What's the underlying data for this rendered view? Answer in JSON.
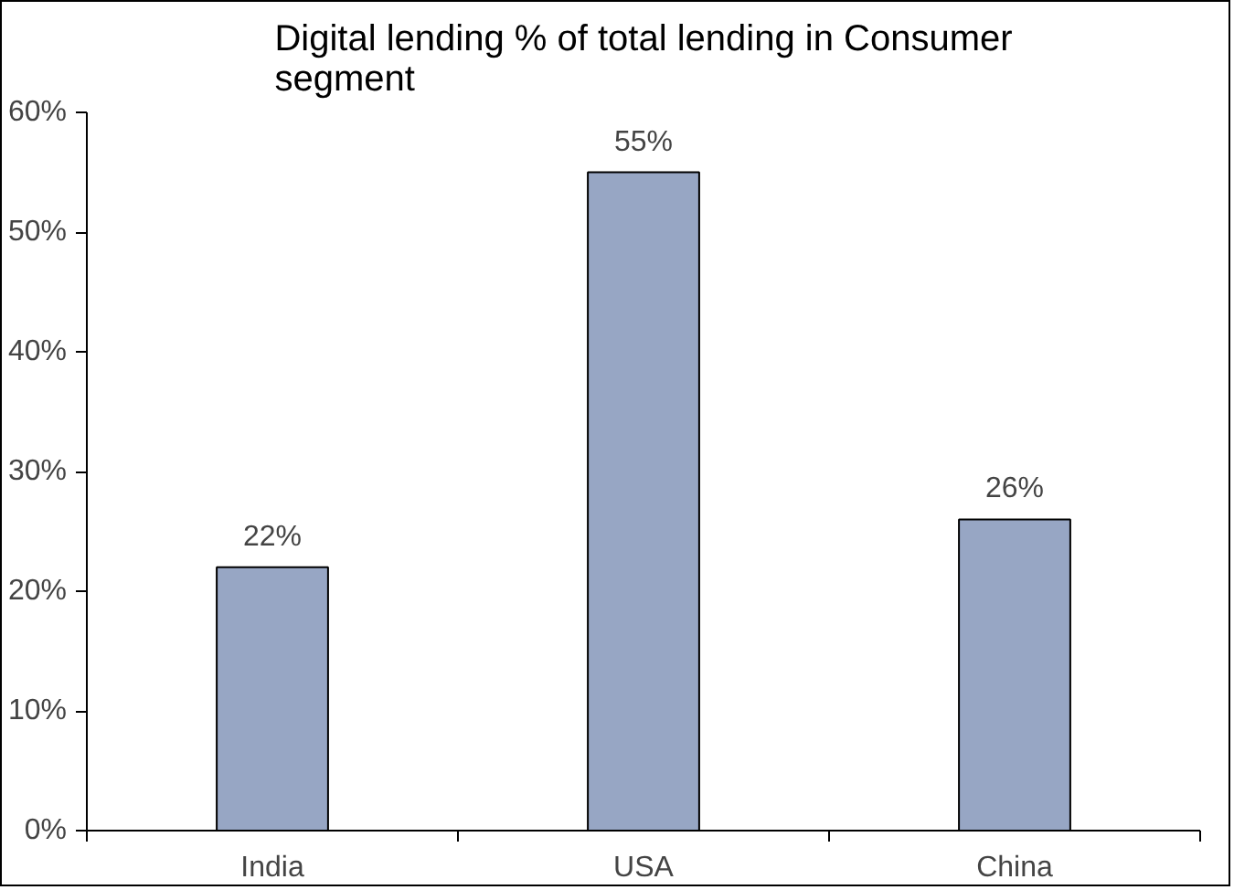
{
  "chart_data": {
    "type": "bar",
    "title": "Digital lending % of total lending in Consumer segment",
    "categories": [
      "India",
      "USA",
      "China"
    ],
    "values": [
      22,
      55,
      26
    ],
    "value_labels": [
      "22%",
      "55%",
      "26%"
    ],
    "color": "#97a6c4",
    "ylim": [
      0,
      60
    ],
    "yticks": [
      {
        "value": 0,
        "label": "0%"
      },
      {
        "value": 10,
        "label": "10%"
      },
      {
        "value": 20,
        "label": "20%"
      },
      {
        "value": 30,
        "label": "30%"
      },
      {
        "value": 40,
        "label": "40%"
      },
      {
        "value": 50,
        "label": "50%"
      },
      {
        "value": 60,
        "label": "60%"
      }
    ],
    "grid": false
  }
}
